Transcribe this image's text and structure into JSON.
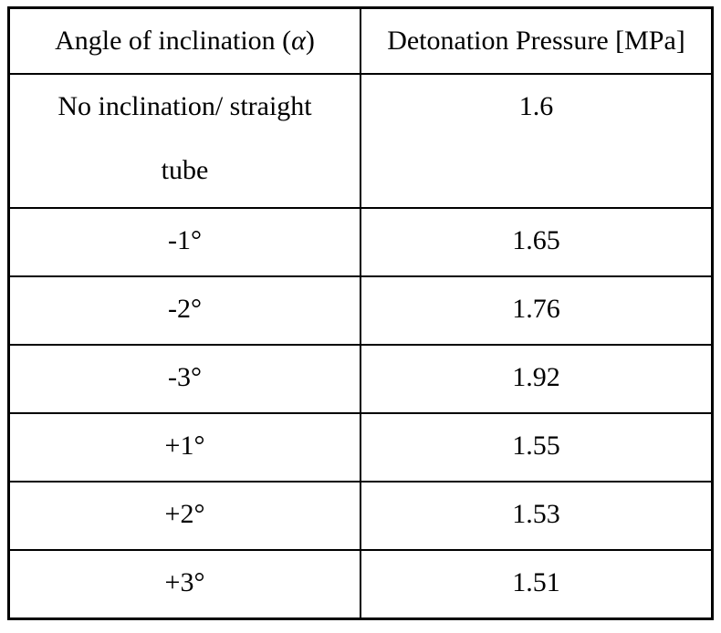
{
  "page": {
    "background": "#ffffff",
    "border_color": "#000000",
    "text_color": "#000000"
  },
  "table": {
    "header": {
      "angle_label_prefix": "Angle of inclination (",
      "angle_symbol": "α",
      "angle_label_suffix": ")",
      "pressure_label": "Detonation Pressure [MPa]"
    },
    "rows": [
      {
        "angle_line1": "No inclination/ straight",
        "angle_line2": "tube",
        "pressure": "1.6"
      },
      {
        "angle_line1": "-1°",
        "pressure": "1.65"
      },
      {
        "angle_line1": "-2°",
        "pressure": "1.76"
      },
      {
        "angle_line1": "-3°",
        "pressure": "1.92"
      },
      {
        "angle_line1": "+1°",
        "pressure": "1.55"
      },
      {
        "angle_line1": "+2°",
        "pressure": "1.53"
      },
      {
        "angle_line1": "+3°",
        "pressure": "1.51"
      }
    ]
  },
  "chart_data": {
    "type": "table",
    "columns": [
      "Angle of inclination (α)",
      "Detonation Pressure [MPa]"
    ],
    "rows": [
      [
        "No inclination/ straight tube",
        1.6
      ],
      [
        "-1°",
        1.65
      ],
      [
        "-2°",
        1.76
      ],
      [
        "-3°",
        1.92
      ],
      [
        "+1°",
        1.55
      ],
      [
        "+2°",
        1.53
      ],
      [
        "+3°",
        1.51
      ]
    ]
  }
}
